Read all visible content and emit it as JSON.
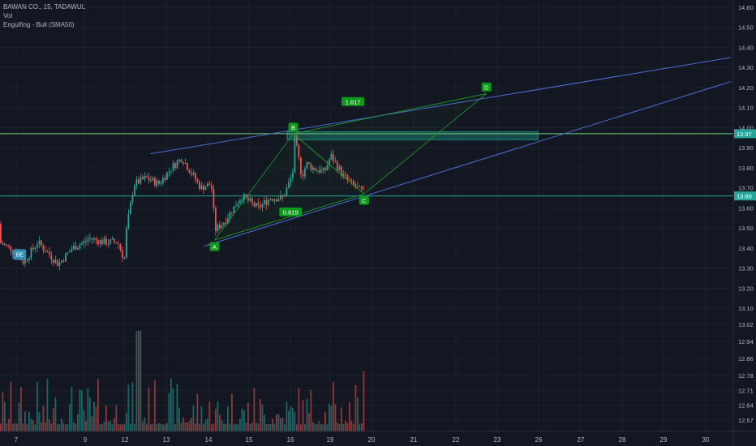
{
  "legend": {
    "title": "BAWAN CO., 15, TADAWUL",
    "volume": "Vol",
    "indicator": "Engulfing - Bull (SMA50)"
  },
  "colors": {
    "background": "#131722",
    "grid": "#1e222d",
    "up": "#26a69a",
    "down": "#ef5350",
    "trend": "#4a6ed6",
    "harmonic": "#1f9d2a",
    "label_green": "#0c9a1a",
    "zone": "#1e8a80",
    "level": "#6fd07a",
    "axis_text": "#b2b5be",
    "price_tag": "#26a69a"
  },
  "chart_data": {
    "type": "candlestick",
    "price_axis": {
      "ylim": [
        13.02,
        14.6
      ],
      "ticks": [
        "14.60",
        "14.50",
        "14.40",
        "14.30",
        "14.20",
        "14.10",
        "14.00",
        "13.90",
        "13.80",
        "13.70",
        "13.60",
        "13.50",
        "13.40",
        "13.30",
        "13.20",
        "13.10",
        "13.02"
      ],
      "tick_values": [
        14.6,
        14.5,
        14.4,
        14.3,
        14.2,
        14.1,
        14.0,
        13.9,
        13.8,
        13.7,
        13.6,
        13.5,
        13.4,
        13.3,
        13.2,
        13.1,
        13.02
      ],
      "current_price": {
        "label": "13.97",
        "value": 13.97
      },
      "second_price": {
        "label": "13.66",
        "value": 13.66
      }
    },
    "volume_axis": {
      "ticks": [
        "13.02",
        "12.94",
        "12.86",
        "12.78",
        "12.71",
        "12.64",
        "12.57"
      ],
      "tick_values": [
        13.02,
        12.94,
        12.86,
        12.78,
        12.71,
        12.64,
        12.57
      ],
      "ylim": [
        12.53,
        13.02
      ]
    },
    "x_axis": {
      "ticks": [
        "7",
        "9",
        "12",
        "13",
        "14",
        "15",
        "16",
        "19",
        "20",
        "21",
        "22",
        "23",
        "26",
        "27",
        "28",
        "29",
        "30"
      ],
      "tick_days": [
        7,
        9,
        12,
        13,
        14,
        15,
        16,
        19,
        20,
        21,
        22,
        23,
        26,
        27,
        28,
        29,
        30
      ]
    },
    "harmonic": {
      "points": [
        {
          "label": "A",
          "day": 14.15,
          "price": 13.44
        },
        {
          "label": "B",
          "day": 16.22,
          "price": 13.97
        },
        {
          "label": "C",
          "day": 19.82,
          "price": 13.67
        },
        {
          "label": "D",
          "day": 22.74,
          "price": 14.17
        }
      ],
      "ratios": [
        {
          "label": "1.617",
          "day": 19.55,
          "price": 14.13
        },
        {
          "label": "0.619",
          "day": 16.02,
          "price": 13.58
        }
      ]
    },
    "trendlines": [
      {
        "from": {
          "day": 12.62,
          "price": 13.87
        },
        "to": {
          "day": 30.6,
          "price": 14.35
        }
      },
      {
        "from": {
          "day": 13.9,
          "price": 13.41
        },
        "to": {
          "day": 30.6,
          "price": 14.23
        }
      }
    ],
    "zone": {
      "from_day": 15.92,
      "to_day": 25.95,
      "top": 13.98,
      "bottom": 13.94
    },
    "horizontal_levels": [
      13.97,
      13.66
    ],
    "signal_badge": {
      "label": "BE",
      "day": 7.1,
      "price": 13.37
    }
  }
}
